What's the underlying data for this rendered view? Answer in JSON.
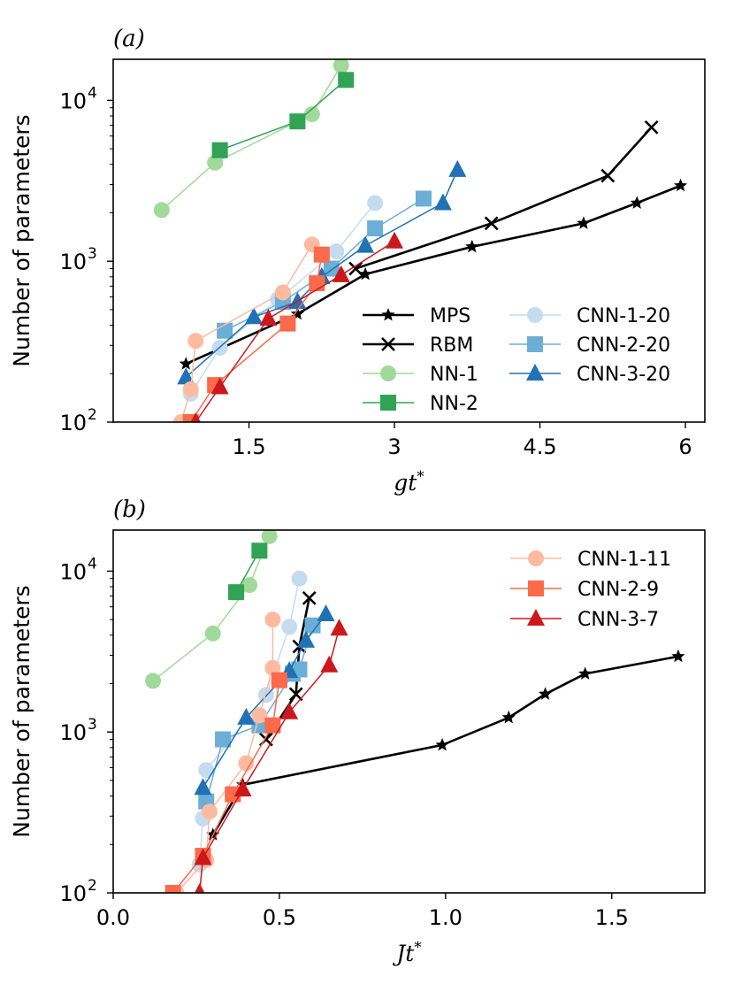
{
  "chart_data": [
    {
      "type": "line",
      "panel_label": "(a)",
      "xlabel_base": "gt",
      "xlabel_sup": "*",
      "ylabel": "Number of parameters",
      "xlim": [
        0.1,
        6.2
      ],
      "ylim": [
        100,
        18000
      ],
      "yscale": "log",
      "xticks": [
        1.5,
        3,
        4.5,
        6
      ],
      "xtick_labels": [
        "1.5",
        "3",
        "4.5",
        "6"
      ],
      "ytick_exps": [
        2,
        3,
        4
      ],
      "ytick_base": "10",
      "ytick_sups": [
        "2",
        "3",
        "4"
      ],
      "legend_columns": 2,
      "legend_position": "lower-right",
      "series": [
        {
          "name": "MPS",
          "marker": "star",
          "color": "#000000",
          "x": [
            0.85,
            2.0,
            2.7,
            3.8,
            4.95,
            5.5,
            5.95
          ],
          "y": [
            230,
            470,
            830,
            1230,
            1720,
            2300,
            2950
          ]
        },
        {
          "name": "RBM",
          "marker": "x",
          "color": "#000000",
          "x": [
            2.6,
            4.0,
            5.2,
            5.65
          ],
          "y": [
            900,
            1720,
            3400,
            6800
          ]
        },
        {
          "name": "NN-1",
          "marker": "circle",
          "color": "#a1d99b",
          "x": [
            0.6,
            1.15,
            2.15,
            2.45
          ],
          "y": [
            2080,
            4100,
            8200,
            16500
          ]
        },
        {
          "name": "NN-2",
          "marker": "square",
          "color": "#31a354",
          "x": [
            1.2,
            2.0,
            2.5
          ],
          "y": [
            4900,
            7400,
            13400
          ]
        },
        {
          "name": "CNN-1-20",
          "marker": "circle",
          "color": "#c6dbef",
          "x": [
            0.9,
            1.2,
            1.8,
            2.4,
            2.8
          ],
          "y": [
            150,
            290,
            580,
            1150,
            2300
          ]
        },
        {
          "name": "CNN-2-20",
          "marker": "square",
          "color": "#6baed6",
          "x": [
            1.25,
            1.85,
            2.35,
            2.8,
            3.3
          ],
          "y": [
            370,
            560,
            900,
            1600,
            2450
          ]
        },
        {
          "name": "CNN-3-20",
          "marker": "triangle",
          "color": "#2171b5",
          "x": [
            0.85,
            1.55,
            2.0,
            2.25,
            2.7,
            3.5,
            3.65
          ],
          "y": [
            190,
            450,
            560,
            800,
            1250,
            2300,
            3700
          ]
        },
        {
          "name": "CNN-1-11",
          "marker": "circle",
          "color": "#fcbba1",
          "x": [
            0.8,
            0.9,
            0.95,
            1.85,
            2.15
          ],
          "y": [
            100,
            160,
            320,
            640,
            1270
          ]
        },
        {
          "name": "CNN-2-9",
          "marker": "square",
          "color": "#fb6a4a",
          "x": [
            0.9,
            1.15,
            1.9,
            2.2,
            2.25
          ],
          "y": [
            100,
            170,
            410,
            730,
            1100
          ]
        },
        {
          "name": "CNN-3-7",
          "marker": "triangle",
          "color": "#cb181d",
          "x": [
            0.95,
            1.2,
            1.7,
            2.45,
            3.0
          ],
          "y": [
            100,
            165,
            440,
            820,
            1330
          ]
        }
      ],
      "legend_entries": [
        "MPS",
        "RBM",
        "NN-1",
        "NN-2",
        "CNN-1-20",
        "CNN-2-20",
        "CNN-3-20"
      ]
    },
    {
      "type": "line",
      "panel_label": "(b)",
      "xlabel_base": "Jt",
      "xlabel_sup": "*",
      "ylabel": "Number of parameters",
      "xlim": [
        0.0,
        1.78
      ],
      "ylim": [
        100,
        18000
      ],
      "yscale": "log",
      "xticks": [
        0.0,
        0.5,
        1.0,
        1.5
      ],
      "xtick_labels": [
        "0.0",
        "0.5",
        "1.0",
        "1.5"
      ],
      "ytick_exps": [
        2,
        3,
        4
      ],
      "ytick_base": "10",
      "ytick_sups": [
        "2",
        "3",
        "4"
      ],
      "legend_columns": 1,
      "legend_position": "upper-right",
      "series": [
        {
          "name": "MPS",
          "marker": "star",
          "color": "#000000",
          "x": [
            0.3,
            0.39,
            0.99,
            1.19,
            1.3,
            1.42,
            1.7
          ],
          "y": [
            230,
            470,
            830,
            1230,
            1720,
            2300,
            2950
          ]
        },
        {
          "name": "RBM",
          "marker": "x",
          "color": "#000000",
          "x": [
            0.46,
            0.55,
            0.56,
            0.59
          ],
          "y": [
            900,
            1720,
            3400,
            6800
          ]
        },
        {
          "name": "NN-1",
          "marker": "circle",
          "color": "#a1d99b",
          "x": [
            0.12,
            0.3,
            0.41,
            0.47
          ],
          "y": [
            2080,
            4100,
            8200,
            16500
          ]
        },
        {
          "name": "NN-2",
          "marker": "square",
          "color": "#31a354",
          "x": [
            0.37,
            0.44
          ],
          "y": [
            7400,
            13400
          ]
        },
        {
          "name": "CNN-1-20",
          "marker": "circle",
          "color": "#c6dbef",
          "x": [
            0.26,
            0.27,
            0.28,
            0.46,
            0.53,
            0.56
          ],
          "y": [
            150,
            290,
            580,
            1700,
            4500,
            9000
          ]
        },
        {
          "name": "CNN-2-20",
          "marker": "square",
          "color": "#6baed6",
          "x": [
            0.28,
            0.33,
            0.44,
            0.54,
            0.56,
            0.6
          ],
          "y": [
            370,
            900,
            1100,
            2300,
            2450,
            4600
          ]
        },
        {
          "name": "CNN-3-20",
          "marker": "triangle",
          "color": "#2171b5",
          "x": [
            0.27,
            0.4,
            0.53,
            0.58,
            0.64
          ],
          "y": [
            450,
            1230,
            2400,
            3700,
            5400
          ]
        },
        {
          "name": "CNN-1-11",
          "marker": "circle",
          "color": "#fcbba1",
          "x": [
            0.19,
            0.28,
            0.29,
            0.4,
            0.44,
            0.48,
            0.48
          ],
          "y": [
            100,
            160,
            320,
            640,
            1270,
            2500,
            5000
          ]
        },
        {
          "name": "CNN-2-9",
          "marker": "square",
          "color": "#fb6a4a",
          "x": [
            0.18,
            0.27,
            0.36,
            0.48,
            0.5
          ],
          "y": [
            100,
            170,
            410,
            1100,
            2100
          ]
        },
        {
          "name": "CNN-3-7",
          "marker": "triangle",
          "color": "#cb181d",
          "x": [
            0.26,
            0.27,
            0.39,
            0.53,
            0.65,
            0.68
          ],
          "y": [
            100,
            165,
            440,
            1330,
            2600,
            4400
          ]
        }
      ],
      "legend_entries": [
        "CNN-1-11",
        "CNN-2-9",
        "CNN-3-7"
      ]
    }
  ]
}
